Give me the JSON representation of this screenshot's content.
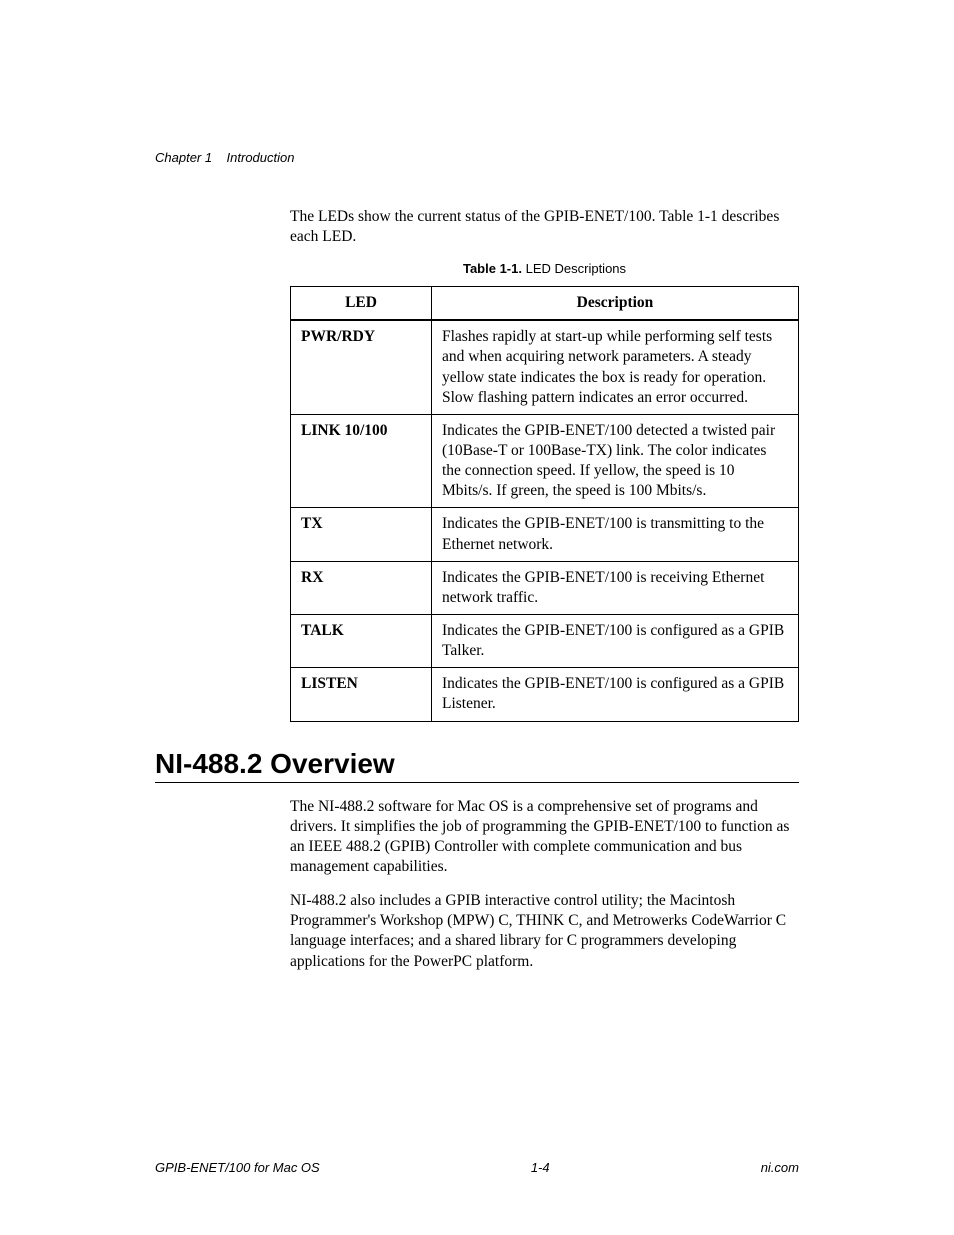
{
  "header": {
    "chapter_label": "Chapter 1",
    "chapter_title": "Introduction"
  },
  "intro_paragraph": "The LEDs show the current status of the GPIB-ENET/100. Table 1-1 describes each LED.",
  "table": {
    "caption_bold": "Table 1-1.",
    "caption_rest": "  LED Descriptions",
    "columns": [
      "LED",
      "Description"
    ],
    "rows": [
      {
        "led": "PWR/RDY",
        "desc": "Flashes rapidly at start-up while performing self tests and when acquiring network parameters. A steady yellow state indicates the box is ready for operation. Slow flashing pattern indicates an error occurred."
      },
      {
        "led": "LINK 10/100",
        "desc": "Indicates the GPIB-ENET/100 detected a twisted pair (10Base-T or 100Base-TX) link. The color indicates the connection speed. If yellow, the speed is 10 Mbits/s. If green, the speed is 100 Mbits/s."
      },
      {
        "led": "TX",
        "desc": "Indicates the GPIB-ENET/100 is transmitting to the Ethernet network."
      },
      {
        "led": "RX",
        "desc": "Indicates the GPIB-ENET/100 is receiving Ethernet network traffic."
      },
      {
        "led": "TALK",
        "desc": "Indicates the GPIB-ENET/100 is configured as a GPIB Talker."
      },
      {
        "led": "LISTEN",
        "desc": "Indicates the GPIB-ENET/100 is configured as a GPIB Listener."
      }
    ]
  },
  "section_heading": "NI-488.2 Overview",
  "overview_para1": "The NI-488.2 software for Mac OS is a comprehensive set of programs and drivers. It simplifies the job of programming the GPIB-ENET/100 to function as an IEEE 488.2 (GPIB) Controller with complete communication and bus management capabilities.",
  "overview_para2": "NI-488.2 also includes a GPIB interactive control utility; the Macintosh Programmer's Workshop (MPW) C, THINK C, and Metrowerks CodeWarrior C language interfaces; and a shared library for C programmers developing applications for the PowerPC platform.",
  "footer": {
    "left": "GPIB-ENET/100 for Mac OS",
    "center": "1-4",
    "right": "ni.com"
  }
}
